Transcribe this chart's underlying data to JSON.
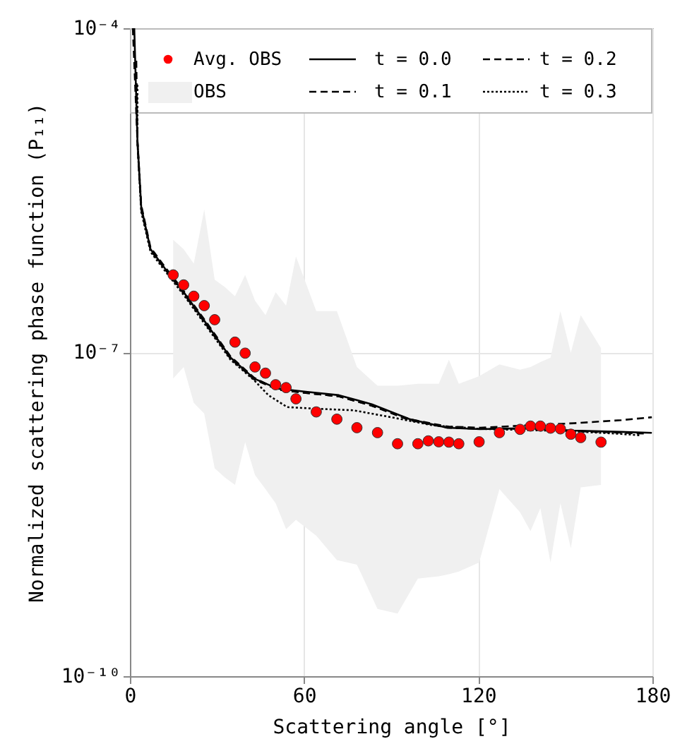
{
  "chart_data": {
    "type": "line",
    "xlabel": "Scattering angle [°]",
    "ylabel": "Normalized scattering phase function (P₁₁)",
    "xlim": [
      0,
      180
    ],
    "xticks": [
      0,
      60,
      120,
      180
    ],
    "ylim": [
      1e-10,
      0.0001
    ],
    "yticks": [
      {
        "value": 0.0001,
        "label": "10⁻⁴"
      },
      {
        "value": 1e-07,
        "label": "10⁻⁷"
      },
      {
        "value": 1e-10,
        "label": "10⁻¹⁰"
      }
    ],
    "log": "y",
    "grid": true,
    "legend": "top",
    "series": [
      {
        "name": "OBS",
        "type": "area",
        "color": "#f0f0f0",
        "x": [
          14.9,
          18.5,
          22.0,
          25.6,
          29.2,
          32.8,
          36.2,
          39.7,
          43.1,
          46.7,
          50.2,
          53.8,
          57.2,
          64.2,
          71.3,
          78.2,
          85.3,
          92.2,
          99.2,
          106.4,
          109.9,
          113.3,
          120.3,
          127.3,
          134.4,
          138.0,
          141.4,
          144.9,
          148.3,
          151.9,
          155.3,
          162.3
        ],
        "values": [
          null,
          null,
          null,
          null,
          null,
          null,
          null,
          null,
          null,
          null,
          null,
          null,
          null,
          null,
          null,
          null,
          null,
          null,
          null,
          null,
          null,
          null,
          null,
          null,
          null,
          null,
          null,
          null,
          null,
          null,
          null,
          null
        ],
        "upper": [
          1.1e-06,
          9e-07,
          6.6e-07,
          2.1e-06,
          4.7e-07,
          4e-07,
          3.3e-07,
          5.2e-07,
          3e-07,
          2.2e-07,
          3.6e-07,
          2.7e-07,
          7.7e-07,
          2.4e-07,
          2.4e-07,
          7.3e-08,
          4.9e-08,
          4.9e-08,
          5.1e-08,
          5.1e-08,
          8.5e-08,
          5.1e-08,
          6e-08,
          7.7e-08,
          6.9e-08,
          7.3e-08,
          8.1e-08,
          8.9e-08,
          2.4e-07,
          9.9e-08,
          2.2e-07,
          1.09e-07
        ],
        "lower": [
          5.7e-08,
          7.3e-08,
          3.4e-08,
          2.7e-08,
          8.4e-09,
          6.9e-09,
          5.9e-09,
          1.47e-08,
          7.3e-09,
          5.4e-09,
          4e-09,
          2.3e-09,
          2.8e-09,
          2e-09,
          1.19e-09,
          1.08e-09,
          4.2e-10,
          3.8e-10,
          8e-10,
          8.4e-10,
          8.8e-10,
          9.3e-10,
          1.13e-09,
          5.4e-09,
          3.3e-09,
          2.2e-09,
          3.6e-09,
          1.13e-09,
          4e-09,
          1.53e-09,
          5.6e-09,
          5.9e-09
        ]
      },
      {
        "name": "t = 0.0",
        "line_style": "solid",
        "color": "#000000",
        "x": [
          1.5,
          2.6,
          3.9,
          7.1,
          12.0,
          18.5,
          26.6,
          34.7,
          42.8,
          50.9,
          60.6,
          72.0,
          83.3,
          96.3,
          109.3,
          120.6,
          136.8,
          153.0,
          169.3,
          179.8
        ],
        "values": [
          0.0001,
          9e-06,
          2.2e-06,
          9e-07,
          6e-07,
          3.6e-07,
          1.8e-07,
          8.9e-08,
          5.7e-08,
          4.6e-08,
          4.3e-08,
          4e-08,
          3.3e-08,
          2.4e-08,
          2e-08,
          1.94e-08,
          1.98e-08,
          1.88e-08,
          1.83e-08,
          1.79e-08
        ]
      },
      {
        "name": "t = 0.1",
        "line_style": "dashed",
        "color": "#000000",
        "x": [
          2.2,
          2.6,
          3.9,
          7.1,
          12.0,
          18.5,
          26.6,
          34.7,
          42.8,
          50.9,
          60.6,
          72.0,
          83.3,
          96.3,
          109.3,
          120.6,
          136.8,
          153.0,
          169.3,
          178.0
        ],
        "values": [
          5e-05,
          9.2e-06,
          2.3e-06,
          9.3e-07,
          6.2e-07,
          3.7e-07,
          1.85e-07,
          9.1e-08,
          5.8e-08,
          4.5e-08,
          4.2e-08,
          3.9e-08,
          3.2e-08,
          2.35e-08,
          2e-08,
          1.95e-08,
          1.96e-08,
          1.86e-08,
          1.8e-08,
          1.76e-08
        ]
      },
      {
        "name": "t = 0.2",
        "line_style": "dashed",
        "color": "#000000",
        "x": [
          1.0,
          2.6,
          3.9,
          7.1,
          12.0,
          18.5,
          26.6,
          34.7,
          42.8,
          50.9,
          60.6,
          72.0,
          83.3,
          96.3,
          109.3,
          120.6,
          136.8,
          153.0,
          169.3,
          179.8
        ],
        "values": [
          0.0001,
          8.8e-06,
          2.1e-06,
          8.8e-07,
          5.9e-07,
          3.5e-07,
          1.75e-07,
          8.7e-08,
          5.6e-08,
          4.5e-08,
          4.2e-08,
          3.9e-08,
          3.2e-08,
          2.4e-08,
          2.05e-08,
          2e-08,
          2.1e-08,
          2.2e-08,
          2.35e-08,
          2.5e-08
        ]
      },
      {
        "name": "t = 0.3",
        "line_style": "dotted",
        "color": "#000000",
        "x": [
          2.6,
          2.6,
          3.9,
          7.1,
          12.0,
          18.5,
          26.6,
          34.7,
          42.8,
          47.7,
          54.2,
          64.0,
          77.0,
          90.0,
          104.5,
          120.6,
          136.8,
          153.0,
          169.3,
          176.0
        ],
        "values": [
          3e-05,
          8.6e-06,
          2e-06,
          8.5e-07,
          5.7e-07,
          3.4e-07,
          1.7e-07,
          8.5e-08,
          5.5e-08,
          4e-08,
          3.1e-08,
          3e-08,
          2.9e-08,
          2.5e-08,
          2.1e-08,
          1.95e-08,
          1.9e-08,
          1.85e-08,
          1.75e-08,
          1.7e-08
        ]
      },
      {
        "name": "Avg. OBS",
        "type": "scatter",
        "marker": "circle",
        "color": "#ff0000",
        "x": [
          14.9,
          18.5,
          22.0,
          25.6,
          29.2,
          36.2,
          39.7,
          43.1,
          46.7,
          50.2,
          53.8,
          57.2,
          64.2,
          71.3,
          78.2,
          85.3,
          92.2,
          99.2,
          102.8,
          106.4,
          109.9,
          113.3,
          120.3,
          127.3,
          134.4,
          138.0,
          141.4,
          144.9,
          148.3,
          151.9,
          155.3,
          162.3
        ],
        "values": [
          5.2e-07,
          4.2e-07,
          3.3e-07,
          2.7e-07,
          2e-07,
          1.24e-07,
          9.8e-08,
          7.3e-08,
          6.4e-08,
          5e-08,
          4.7e-08,
          3.7e-08,
          2.8e-08,
          2.4e-08,
          2e-08,
          1.8e-08,
          1.42e-08,
          1.42e-08,
          1.51e-08,
          1.48e-08,
          1.47e-08,
          1.42e-08,
          1.48e-08,
          1.8e-08,
          1.93e-08,
          2.07e-08,
          2.07e-08,
          1.98e-08,
          1.95e-08,
          1.74e-08,
          1.62e-08,
          1.47e-08
        ]
      }
    ]
  }
}
